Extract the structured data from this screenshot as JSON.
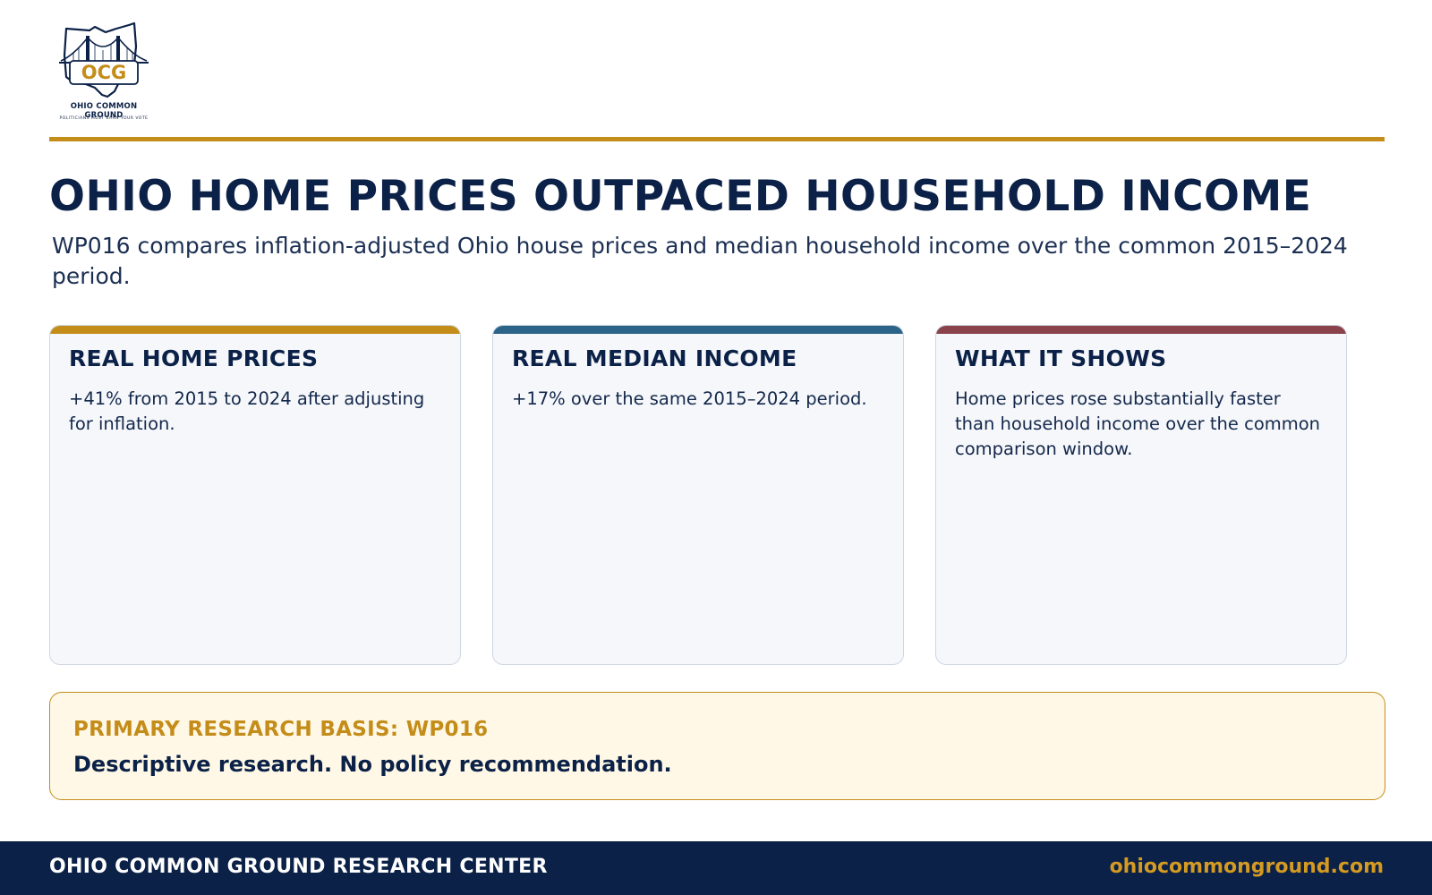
{
  "brand": {
    "logo_mark": "OCG",
    "logo_name": "OHIO COMMON GROUND",
    "logo_tagline": "POLITICIANS MUST EARN YOUR VOTE"
  },
  "header": {
    "title": "OHIO HOME PRICES OUTPACED HOUSEHOLD INCOME",
    "subtitle": "WP016 compares inflation-adjusted Ohio house prices and median household income over the common 2015–2024 period."
  },
  "cards": [
    {
      "title": "REAL HOME PRICES",
      "body": "+41% from 2015 to 2024 after adjusting for inflation.",
      "accent": "#c48d1a"
    },
    {
      "title": "REAL MEDIAN INCOME",
      "body": "+17% over the same 2015–2024 period.",
      "accent": "#2c6389"
    },
    {
      "title": "WHAT IT SHOWS",
      "body": "Home prices rose substantially faster than household income over the common comparison window.",
      "accent": "#8a434b"
    }
  ],
  "basis": {
    "title": "PRIMARY RESEARCH BASIS: WP016",
    "text": "Descriptive research. No policy recommendation."
  },
  "footer": {
    "org": "OHIO COMMON GROUND RESEARCH CENTER",
    "url": "ohiocommonground.com"
  },
  "colors": {
    "navy": "#0b2147",
    "gold": "#c48d1a",
    "panel": "#f5f7fb",
    "basis_bg": "#fff8e6"
  },
  "icons": {
    "logo": "ohio-state-bridge-logo-icon"
  }
}
